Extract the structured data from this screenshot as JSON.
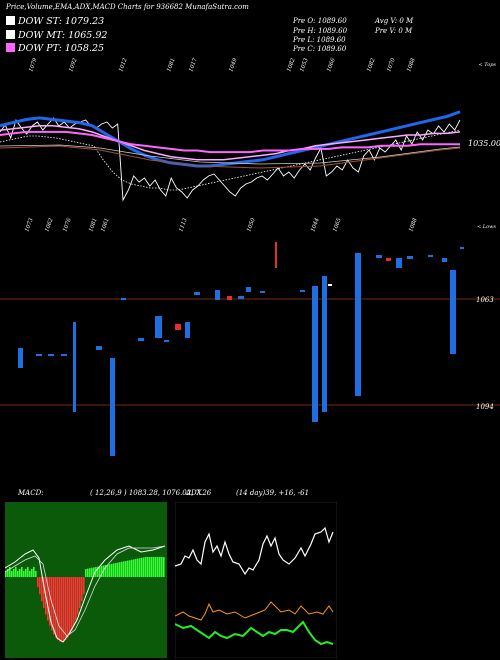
{
  "header": {
    "title": "Price,Volume,EMA,ADX,MACD Charts for 936682  MunafaSutra.com",
    "dow_st": "DOW ST: 1079.23",
    "dow_mt": "DOW MT: 1065.92",
    "dow_pt": "DOW PT: 1058.25",
    "prev_o": "Pre   O: 1089.60",
    "prev_h": "Pre   H: 1089.60",
    "prev_l": "Pre   L: 1089.60",
    "prev_c": "Pre   C: 1089.60",
    "avg_v": "Avg V: 0   M",
    "prev_v": "Pre   V: 0   M"
  },
  "colors": {
    "dow_st": "#2266ee",
    "dow_mt": "#ffffff",
    "dow_pt": "#ff66ff",
    "up_candle": "#1e6fe0",
    "down_candle": "#e03030",
    "pivot_line": "#7a2a10",
    "macd_bg": "#0a5a0a",
    "macd_up": "#33ff33",
    "macd_down": "#ff3333",
    "adx_white": "#ffffff",
    "adx_orange": "#ff9900",
    "adx_green": "#22ee22"
  },
  "labels": {
    "price_label": "1035.00",
    "tops": "< Tops",
    "lows": "< Lows",
    "level_high": "1063",
    "level_low": "1094",
    "macd_label": "MACD:",
    "macd_values": "( 12,26,9 ) 1083.28,  1076.02,  7.26",
    "adx_label": "ADX",
    "adx_values": "(14  day)39,  +16,  -61"
  },
  "chart_data": [
    {
      "type": "line",
      "name": "price_ema",
      "top_tick_labels": [
        "1079",
        "1092",
        "1012",
        "1081",
        "1017",
        "1049",
        "1082",
        "1053",
        "1066",
        "1082",
        "1070",
        "1088"
      ],
      "bottom_tick_labels": [
        "1073",
        "1062",
        "1076",
        "1081",
        "1061",
        "1113",
        "1050",
        "1044",
        "1065",
        "1088"
      ],
      "price_label": 1035.0,
      "series": [
        {
          "name": "DOW ST",
          "values": [
            1070,
            1072,
            1074,
            1075,
            1074,
            1073,
            1072,
            1070,
            1065,
            1060,
            1055,
            1051,
            1048,
            1046,
            1045,
            1044,
            1044,
            1045,
            1046,
            1047,
            1048,
            1050,
            1052,
            1054,
            1056,
            1058,
            1060,
            1062,
            1064,
            1066,
            1068,
            1070,
            1072,
            1074,
            1076,
            1079
          ]
        },
        {
          "name": "DOW MT",
          "values": [
            1067,
            1068,
            1069,
            1070,
            1070,
            1069,
            1068,
            1066,
            1063,
            1060,
            1057,
            1054,
            1052,
            1050,
            1049,
            1048,
            1048,
            1048,
            1049,
            1050,
            1051,
            1052,
            1054,
            1055,
            1057,
            1058,
            1059,
            1060,
            1061,
            1062,
            1063,
            1064,
            1064,
            1065,
            1065,
            1066
          ]
        },
        {
          "name": "DOW PT",
          "values": [
            1064,
            1065,
            1066,
            1066,
            1066,
            1066,
            1065,
            1064,
            1062,
            1060,
            1058,
            1057,
            1056,
            1055,
            1054,
            1054,
            1053,
            1053,
            1053,
            1053,
            1054,
            1054,
            1054,
            1055,
            1055,
            1055,
            1056,
            1056,
            1056,
            1057,
            1057,
            1057,
            1058,
            1058,
            1058,
            1058
          ]
        }
      ]
    },
    {
      "type": "bar",
      "name": "candles",
      "levels": [
        1063,
        1094
      ]
    },
    {
      "type": "area",
      "name": "MACD",
      "macd": 1083.28,
      "signal": 1076.02,
      "hist": 7.26
    },
    {
      "type": "line",
      "name": "ADX",
      "adx": 39,
      "plus_di": 16,
      "minus_di": 61
    }
  ]
}
